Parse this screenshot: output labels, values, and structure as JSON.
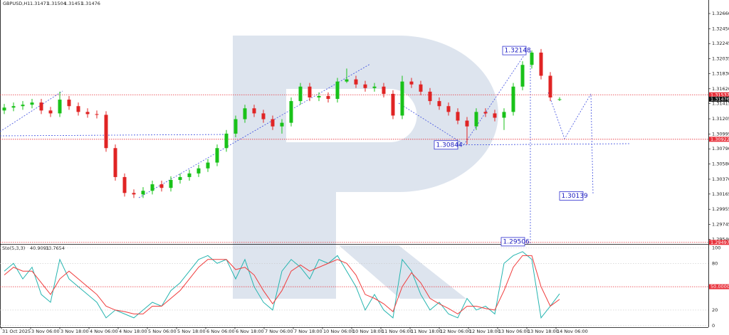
{
  "header": {
    "symbol": "GBPUSD,H1"
  },
  "chart_data": [
    {
      "type": "candlestick",
      "open": [
        1.3132,
        1.3136,
        1.3138,
        1.314,
        1.3143,
        1.3132,
        1.3128,
        1.3147,
        1.3138,
        1.313,
        1.3127,
        1.3126,
        1.308,
        1.304,
        1.3018,
        1.3016,
        1.3021,
        1.303,
        1.3025,
        1.3036,
        1.304,
        1.3045,
        1.3052,
        1.306,
        1.308,
        1.31,
        1.312,
        1.3135,
        1.3128,
        1.312,
        1.311,
        1.3115,
        1.3145,
        1.3165,
        1.315,
        1.3152,
        1.3148,
        1.3172,
        1.3175,
        1.3168,
        1.3163,
        1.3165,
        1.3155,
        1.3125,
        1.3172,
        1.3168,
        1.3158,
        1.3145,
        1.3138,
        1.313,
        1.3118,
        1.311,
        1.313,
        1.3128,
        1.3122,
        1.313,
        1.3165,
        1.3195,
        1.3212,
        1.318,
        1.31471
      ],
      "high": [
        1.3141,
        1.3143,
        1.3145,
        1.3148,
        1.3148,
        1.3137,
        1.3158,
        1.3152,
        1.3143,
        1.3135,
        1.3132,
        1.3131,
        1.3085,
        1.3045,
        1.3023,
        1.3026,
        1.3035,
        1.3035,
        1.3041,
        1.3045,
        1.305,
        1.3057,
        1.3065,
        1.3085,
        1.3105,
        1.3125,
        1.314,
        1.314,
        1.3133,
        1.3125,
        1.312,
        1.315,
        1.317,
        1.317,
        1.3157,
        1.3157,
        1.3177,
        1.319,
        1.318,
        1.3173,
        1.317,
        1.317,
        1.316,
        1.318,
        1.3177,
        1.3173,
        1.3163,
        1.315,
        1.3143,
        1.3135,
        1.3123,
        1.3135,
        1.3135,
        1.3133,
        1.3135,
        1.317,
        1.32,
        1.3215,
        1.3217,
        1.3185,
        1.31504
      ],
      "low": [
        1.3127,
        1.3131,
        1.3133,
        1.3135,
        1.3127,
        1.3123,
        1.3123,
        1.3133,
        1.3125,
        1.3122,
        1.3121,
        1.3075,
        1.3035,
        1.3013,
        1.3011,
        1.3011,
        1.3016,
        1.302,
        1.302,
        1.3031,
        1.3035,
        1.304,
        1.3047,
        1.3055,
        1.3075,
        1.3095,
        1.3115,
        1.3123,
        1.3115,
        1.3105,
        1.31,
        1.311,
        1.314,
        1.3145,
        1.3145,
        1.3143,
        1.3143,
        1.317,
        1.3163,
        1.3158,
        1.3158,
        1.315,
        1.312,
        1.312,
        1.3163,
        1.3153,
        1.314,
        1.3133,
        1.3125,
        1.3113,
        1.3085,
        1.3105,
        1.3123,
        1.3117,
        1.3105,
        1.3125,
        1.316,
        1.319,
        1.3175,
        1.3145,
        1.31451
      ],
      "close": [
        1.3136,
        1.3138,
        1.314,
        1.3143,
        1.3132,
        1.3128,
        1.3147,
        1.3138,
        1.313,
        1.3127,
        1.3126,
        1.308,
        1.304,
        1.3018,
        1.3016,
        1.3021,
        1.303,
        1.3025,
        1.3036,
        1.304,
        1.3045,
        1.3052,
        1.306,
        1.308,
        1.31,
        1.312,
        1.3135,
        1.3128,
        1.312,
        1.311,
        1.3115,
        1.3145,
        1.3165,
        1.315,
        1.3152,
        1.3148,
        1.3172,
        1.3175,
        1.3168,
        1.3163,
        1.3165,
        1.3155,
        1.3125,
        1.3172,
        1.3168,
        1.3158,
        1.3145,
        1.3138,
        1.313,
        1.3118,
        1.311,
        1.313,
        1.3128,
        1.3122,
        1.313,
        1.3165,
        1.3195,
        1.3212,
        1.318,
        1.315,
        1.31476
      ],
      "up_color": "#19c219",
      "down_color": "#e02424",
      "ylim": [
        1.29485,
        1.32847
      ],
      "yticks": [
        {
          "value": 1.3266,
          "label": "1.32660"
        },
        {
          "value": 1.3245,
          "label": "1.32450"
        },
        {
          "value": 1.32245,
          "label": "1.32245"
        },
        {
          "value": 1.32035,
          "label": "1.32035"
        },
        {
          "value": 1.3183,
          "label": "1.31830"
        },
        {
          "value": 1.3162,
          "label": "1.31620"
        },
        {
          "value": 1.31415,
          "label": "1.31415"
        },
        {
          "value": 1.31205,
          "label": "1.31205"
        },
        {
          "value": 1.30995,
          "label": "1.30995"
        },
        {
          "value": 1.3079,
          "label": "1.30790"
        },
        {
          "value": 1.3058,
          "label": "1.30580"
        },
        {
          "value": 1.3037,
          "label": "1.30370"
        },
        {
          "value": 1.30165,
          "label": "1.30165"
        },
        {
          "value": 1.29955,
          "label": "1.29955"
        },
        {
          "value": 1.29745,
          "label": "1.29745"
        },
        {
          "value": 1.2954,
          "label": "1.29540"
        }
      ],
      "price_marks": [
        1.31537,
        1.30922,
        1.29497
      ],
      "price_mark_color": "#e8303a",
      "annotations": [
        1.32148,
        1.30844,
        1.30139,
        1.29506
      ],
      "xticks": [
        "31 Oct 2025",
        "3 Nov 06:00",
        "3 Nov 18:00",
        "4 Nov 06:00",
        "4 Nov 18:00",
        "5 Nov 06:00",
        "5 Nov 18:00",
        "6 Nov 06:00",
        "6 Nov 18:00",
        "7 Nov 06:00",
        "7 Nov 18:00",
        "10 Nov 06:00",
        "10 Nov 18:00",
        "11 Nov 06:00",
        "11 Nov 18:00",
        "12 Nov 06:00",
        "12 Nov 18:00",
        "13 Nov 06:00",
        "13 Nov 18:00",
        "14 Nov 06:00"
      ]
    },
    {
      "type": "line",
      "title": "Sto(5,3,3)",
      "series": [
        {
          "color": "#26b5b0",
          "values": [
            70,
            80,
            60,
            75,
            40,
            30,
            85,
            60,
            50,
            40,
            30,
            10,
            20,
            15,
            10,
            20,
            30,
            25,
            45,
            55,
            70,
            85,
            90,
            80,
            85,
            60,
            85,
            50,
            30,
            20,
            70,
            85,
            75,
            60,
            85,
            80,
            90,
            70,
            50,
            20,
            40,
            20,
            10,
            85,
            70,
            40,
            20,
            30,
            15,
            10,
            35,
            20,
            25,
            15,
            80,
            90,
            95,
            85,
            10,
            25,
            40.9091
          ]
        },
        {
          "color": "#f03c3c",
          "values": [
            65,
            75,
            70,
            70,
            55,
            40,
            60,
            70,
            60,
            50,
            40,
            25,
            20,
            18,
            15,
            15,
            25,
            25,
            35,
            45,
            60,
            75,
            85,
            85,
            85,
            72,
            75,
            65,
            45,
            28,
            45,
            70,
            78,
            70,
            75,
            80,
            85,
            80,
            65,
            40,
            35,
            28,
            18,
            50,
            68,
            55,
            35,
            28,
            22,
            15,
            25,
            25,
            22,
            20,
            45,
            75,
            90,
            90,
            50,
            25,
            33.7654
          ]
        }
      ],
      "ylim": [
        -2,
        104
      ],
      "yticks": [
        0,
        20,
        80,
        100
      ],
      "levels": [
        {
          "value": 50,
          "label": "50.0000"
        }
      ]
    }
  ]
}
